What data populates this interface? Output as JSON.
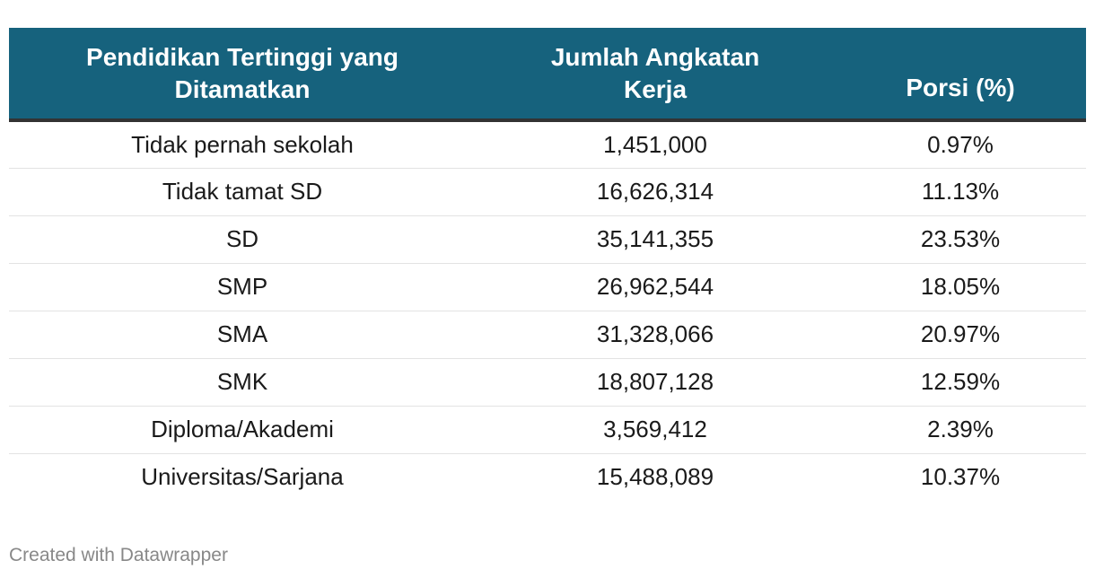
{
  "chart_data": {
    "type": "table",
    "columns": [
      "Pendidikan Tertinggi yang Ditamatkan",
      "Jumlah Angkatan Kerja",
      "Porsi (%)"
    ],
    "rows": [
      [
        "Tidak pernah sekolah",
        "1,451,000",
        "0.97%"
      ],
      [
        "Tidak tamat SD",
        "16,626,314",
        "11.13%"
      ],
      [
        "SD",
        "35,141,355",
        "23.53%"
      ],
      [
        "SMP",
        "26,962,544",
        "18.05%"
      ],
      [
        "SMA",
        "31,328,066",
        "20.97%"
      ],
      [
        "SMK",
        "18,807,128",
        "12.59%"
      ],
      [
        "Diploma/Akademi",
        "3,569,412",
        "2.39%"
      ],
      [
        "Universitas/Sarjana",
        "15,488,089",
        "10.37%"
      ]
    ]
  },
  "footer": {
    "credit": "Created with Datawrapper"
  },
  "colors": {
    "header_bg": "#16627d",
    "header_text": "#ffffff",
    "header_border": "#333333",
    "row_divider": "#e3e3e3",
    "footer_text": "#888888"
  }
}
